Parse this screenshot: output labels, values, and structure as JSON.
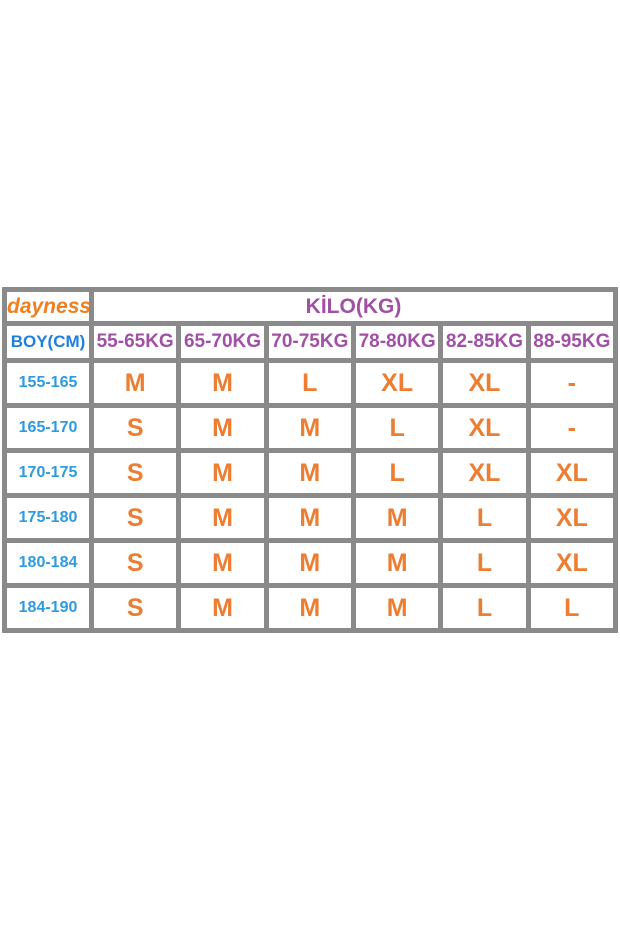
{
  "brand": {
    "name": "dayness"
  },
  "table": {
    "kilo_header": "KİLO(KG)",
    "corner_label": "BOY(CM)",
    "weight_columns": [
      "55-65KG",
      "65-70KG",
      "70-75KG",
      "78-80KG",
      "82-85KG",
      "88-95KG"
    ],
    "rows": [
      {
        "height": "155-165",
        "sizes": [
          "M",
          "M",
          "L",
          "XL",
          "XL",
          "-"
        ]
      },
      {
        "height": "165-170",
        "sizes": [
          "S",
          "M",
          "M",
          "L",
          "XL",
          "-"
        ]
      },
      {
        "height": "170-175",
        "sizes": [
          "S",
          "M",
          "M",
          "L",
          "XL",
          "XL"
        ]
      },
      {
        "height": "175-180",
        "sizes": [
          "S",
          "M",
          "M",
          "M",
          "L",
          "XL"
        ]
      },
      {
        "height": "180-184",
        "sizes": [
          "S",
          "M",
          "M",
          "M",
          "L",
          "XL"
        ]
      },
      {
        "height": "184-190",
        "sizes": [
          "S",
          "M",
          "M",
          "M",
          "L",
          "L"
        ]
      }
    ],
    "colors": {
      "grid": "#8a8a8a",
      "brand_background": "#9d1b21",
      "brand_text": "#f0801f",
      "purple_header": "#a050a5",
      "blue_corner": "#1f7fdd",
      "blue_heights": "#2e9ae0",
      "orange_sizes": "#ed7d31"
    }
  }
}
